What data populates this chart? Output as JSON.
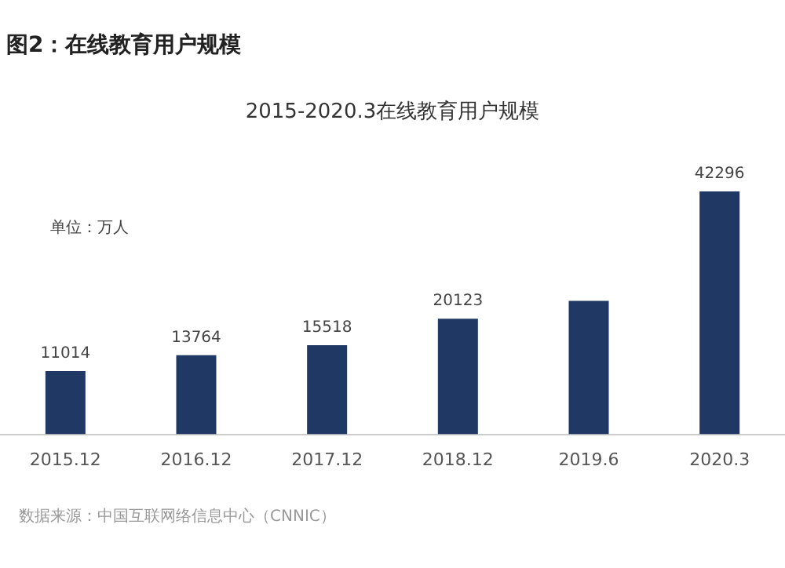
{
  "chart_data": {
    "type": "bar",
    "title": "图2：在线教育用户规模",
    "subtitle": "2015-2020.3在线教育用户规模",
    "categories": [
      "2015.12",
      "2016.12",
      "2017.12",
      "2018.12",
      "2019.6",
      "2020.3"
    ],
    "values": [
      11014,
      13764,
      15518,
      20123,
      23246,
      42296
    ],
    "value_labels": [
      "11014",
      "13764",
      "15518",
      "20123",
      null,
      "42296"
    ],
    "color": "#1f3864",
    "grid": false,
    "legend": false,
    "annotations": [
      "单位：万人",
      "数据来源：中国互联网络信息中心（CNNIC）"
    ]
  }
}
